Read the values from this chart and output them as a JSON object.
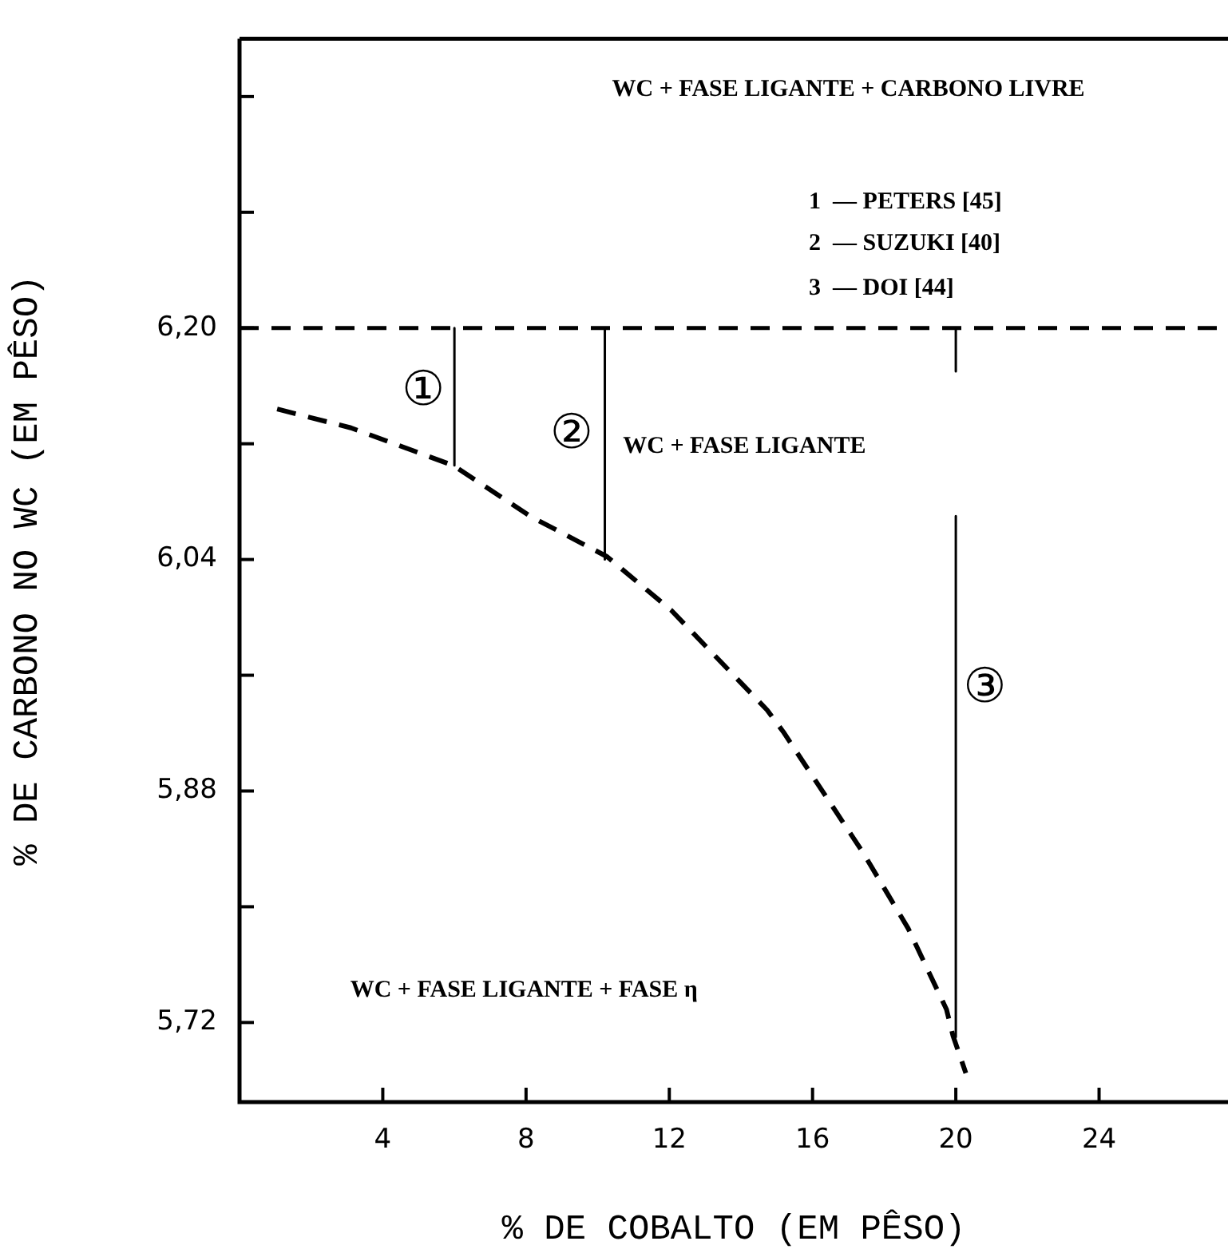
{
  "chart_data": {
    "type": "line",
    "xlabel": "% DE COBALTO (EM PÊSO)",
    "ylabel": "% DE CARBONO NO WC (EM PÊSO)",
    "xlim": [
      0,
      27.6
    ],
    "xticks": [
      4,
      8,
      12,
      16,
      20,
      24
    ],
    "ylim": [
      5.665,
      6.4
    ],
    "yticks": [
      {
        "value": 5.72,
        "label": "5,72"
      },
      {
        "value": 5.8,
        "label": null
      },
      {
        "value": 5.88,
        "label": "5,88"
      },
      {
        "value": 5.96,
        "label": null
      },
      {
        "value": 6.04,
        "label": "6,04"
      },
      {
        "value": 6.12,
        "label": null
      },
      {
        "value": 6.2,
        "label": "6,20"
      },
      {
        "value": 6.28,
        "label": null
      },
      {
        "value": 6.36,
        "label": null
      }
    ],
    "grid": false,
    "legend": false,
    "marker": "none",
    "series": [
      {
        "color": "#000000",
        "line_style": "dashed",
        "x": [
          1.05,
          3.11,
          5.97,
          8.11,
          10.26,
          12.05,
          14.73,
          15.18,
          17.42,
          18.67,
          19.74,
          19.92,
          20.28
        ],
        "values": [
          6.144,
          6.131,
          6.105,
          6.07,
          6.042,
          6.005,
          5.936,
          5.921,
          5.837,
          5.785,
          5.729,
          5.711,
          5.685
        ]
      },
      {
        "color": "#000000",
        "line_style": "solid",
        "x": [
          6,
          6
        ],
        "values": [
          6.2,
          6.105
        ]
      },
      {
        "color": "#000000",
        "line_style": "solid",
        "x": [
          10.2,
          10.2
        ],
        "values": [
          6.2,
          6.04
        ]
      },
      {
        "color": "#000000",
        "line_style": "solid",
        "x": [
          20,
          20
        ],
        "values": [
          6.2,
          6.17
        ]
      },
      {
        "color": "#000000",
        "line_style": "solid",
        "x": [
          20,
          20
        ],
        "values": [
          6.07,
          5.71
        ]
      }
    ],
    "ref_lines": [
      {
        "axis": "y",
        "value": 6.2,
        "line_style": "dashed",
        "color": "#000000"
      }
    ],
    "annotations": [
      "WC + FASE LIGANTE + CARBONO LIVRE",
      "1  — PETERS [45]",
      "2  — SUZUKI [40]",
      "3  — DOI [44]",
      "①",
      "②",
      "③",
      "WC + FASE LIGANTE",
      "WC + FASE LIGANTE + FASE η"
    ]
  }
}
